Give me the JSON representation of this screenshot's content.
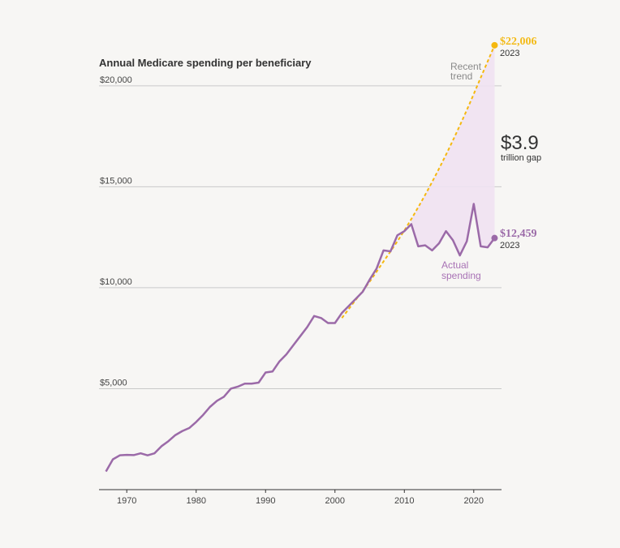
{
  "chart_data": {
    "type": "line",
    "title": "Annual Medicare spending per beneficiary",
    "xlabel": "",
    "ylabel": "",
    "xlim": [
      1966,
      2024
    ],
    "ylim": [
      0,
      22000
    ],
    "yticks": [
      5000,
      10000,
      15000,
      20000
    ],
    "ytick_labels": [
      "$5,000",
      "$10,000",
      "$15,000",
      "$20,000"
    ],
    "xticks": [
      1970,
      1980,
      1990,
      2000,
      2010,
      2020
    ],
    "xtick_labels": [
      "1970",
      "1980",
      "1990",
      "2000",
      "2010",
      "2020"
    ],
    "grid": true,
    "colors": {
      "actual": "#9b6aa8",
      "trend": "#f5b80f",
      "gap_fill": "#efe2f2"
    },
    "series": [
      {
        "name": "Actual spending",
        "x": [
          1967,
          1968,
          1969,
          1970,
          1971,
          1972,
          1973,
          1974,
          1975,
          1976,
          1977,
          1978,
          1979,
          1980,
          1981,
          1982,
          1983,
          1984,
          1985,
          1986,
          1987,
          1988,
          1989,
          1990,
          1991,
          1992,
          1993,
          1994,
          1995,
          1996,
          1997,
          1998,
          1999,
          2000,
          2001,
          2002,
          2003,
          2004,
          2005,
          2006,
          2007,
          2008,
          2009,
          2010,
          2011,
          2012,
          2013,
          2014,
          2015,
          2016,
          2017,
          2018,
          2019,
          2020,
          2021,
          2022,
          2023
        ],
        "y": [
          900,
          1500,
          1700,
          1720,
          1710,
          1800,
          1700,
          1800,
          2150,
          2400,
          2700,
          2900,
          3050,
          3350,
          3700,
          4100,
          4400,
          4600,
          5000,
          5100,
          5250,
          5250,
          5300,
          5800,
          5850,
          6350,
          6700,
          7150,
          7600,
          8050,
          8600,
          8500,
          8250,
          8250,
          8750,
          9100,
          9450,
          9800,
          10400,
          10950,
          11850,
          11800,
          12600,
          12800,
          13150,
          12050,
          12100,
          11850,
          12200,
          12800,
          12350,
          11600,
          12300,
          14150,
          12050,
          12000,
          12459
        ]
      },
      {
        "name": "Recent trend",
        "x": [
          2001,
          2003,
          2005,
          2007,
          2009,
          2011,
          2013,
          2015,
          2017,
          2019,
          2021,
          2023
        ],
        "y": [
          8500,
          9400,
          10300,
          11300,
          12300,
          13400,
          14600,
          15900,
          17300,
          18800,
          20400,
          22006
        ]
      }
    ],
    "annotations": {
      "trend_label_line1": "Recent",
      "trend_label_line2": "trend",
      "actual_label_line1": "Actual",
      "actual_label_line2": "spending",
      "trend_value": "$22,006",
      "trend_year": "2023",
      "actual_value": "$12,459",
      "actual_year": "2023",
      "gap_value": "$3.9",
      "gap_label": "trillion gap"
    }
  }
}
